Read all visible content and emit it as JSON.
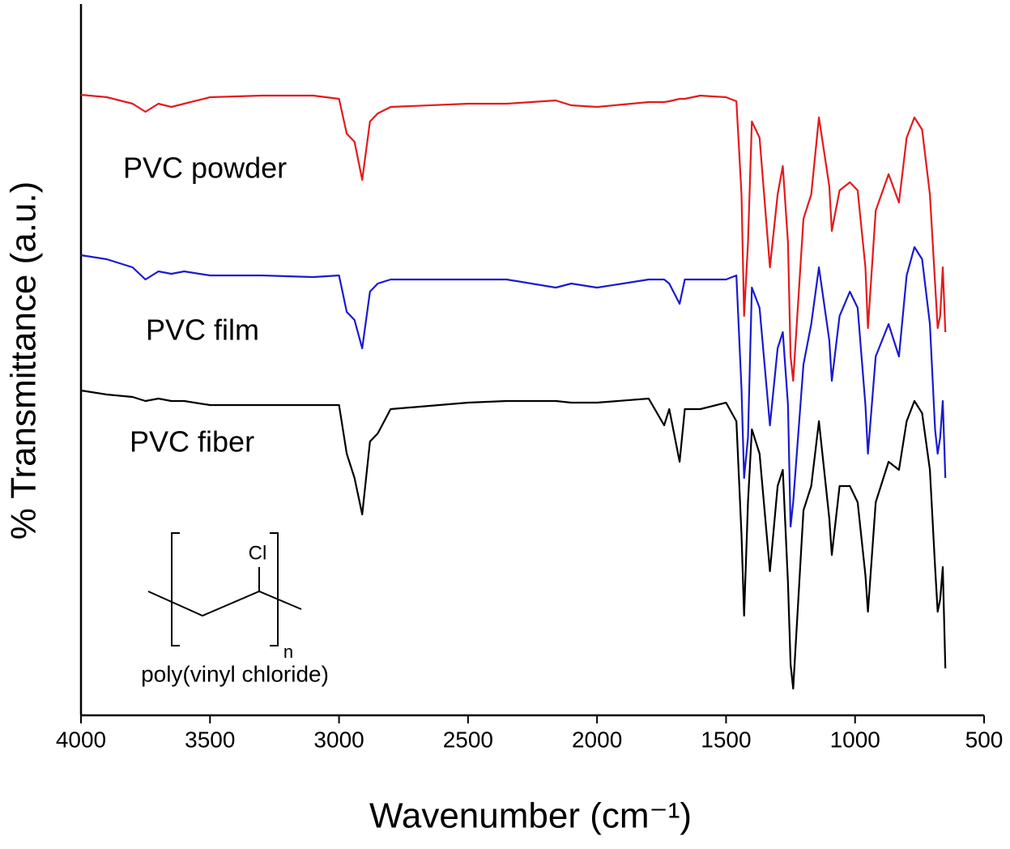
{
  "chart_data": {
    "type": "line",
    "x_label": "Wavenumber (cm⁻¹)",
    "y_label": "% Transmittance (a.u.)",
    "xlim": [
      4000,
      500
    ],
    "ylim": [
      0,
      87.8
    ],
    "xticks": [
      4000,
      3500,
      3000,
      2500,
      2000,
      1500,
      1000,
      500
    ],
    "x": [
      4000,
      3900,
      3800,
      3750,
      3700,
      3650,
      3600,
      3500,
      3300,
      3100,
      3000,
      2970,
      2940,
      2910,
      2880,
      2850,
      2800,
      2500,
      2350,
      2160,
      2100,
      2000,
      1800,
      1740,
      1720,
      1680,
      1660,
      1600,
      1500,
      1460,
      1440,
      1430,
      1415,
      1400,
      1370,
      1330,
      1300,
      1280,
      1260,
      1250,
      1240,
      1200,
      1170,
      1140,
      1100,
      1090,
      1060,
      1020,
      990,
      960,
      950,
      920,
      870,
      830,
      800,
      770,
      740,
      710,
      690,
      680,
      670,
      660,
      650
    ],
    "series": [
      {
        "name": "PVC powder",
        "color": "#e41a1c",
        "values": [
          76.6,
          76.3,
          75.5,
          74.5,
          75.5,
          75.1,
          75.5,
          76.3,
          76.5,
          76.5,
          76.1,
          71.8,
          70.8,
          66.1,
          73.3,
          74.3,
          75.1,
          75.5,
          75.5,
          75.9,
          75.3,
          75.1,
          75.7,
          75.7,
          75.8,
          76.1,
          76.1,
          76.5,
          76.3,
          75.8,
          64.3,
          49.3,
          58.3,
          73.3,
          71.3,
          55.3,
          64.3,
          67.8,
          58.3,
          44.3,
          41.3,
          61.3,
          64.3,
          73.8,
          65.3,
          59.8,
          64.8,
          65.8,
          64.8,
          55.3,
          47.8,
          62.3,
          66.8,
          63.3,
          71.3,
          73.8,
          72.3,
          64.3,
          53.3,
          47.8,
          49.3,
          55.3,
          47.3
        ]
      },
      {
        "name": "PVC film",
        "color": "#1a1ad0",
        "values": [
          56.8,
          56.3,
          55.3,
          53.8,
          54.8,
          54.5,
          54.8,
          54.3,
          54.3,
          54.1,
          54.3,
          49.8,
          48.8,
          45.3,
          52.3,
          53.3,
          53.8,
          53.8,
          53.8,
          52.8,
          53.3,
          52.8,
          53.8,
          53.8,
          53.3,
          50.8,
          53.8,
          53.8,
          53.8,
          54.3,
          40.3,
          29.3,
          34.3,
          52.8,
          50.3,
          35.8,
          45.3,
          47.3,
          38.3,
          23.3,
          26.3,
          43.3,
          48.3,
          55.3,
          46.3,
          41.3,
          49.3,
          52.3,
          50.3,
          38.3,
          32.3,
          44.3,
          48.3,
          44.3,
          54.3,
          57.8,
          56.3,
          48.3,
          35.3,
          32.3,
          34.3,
          38.8,
          29.3
        ]
      },
      {
        "name": "PVC fiber",
        "color": "#000000",
        "values": [
          40.1,
          39.6,
          39.3,
          38.8,
          39.1,
          38.8,
          38.8,
          38.3,
          38.3,
          38.3,
          38.3,
          32.3,
          29.3,
          24.8,
          33.8,
          34.8,
          37.8,
          38.6,
          38.8,
          38.8,
          38.6,
          38.6,
          39.1,
          35.8,
          37.8,
          31.3,
          37.8,
          37.8,
          38.6,
          36.3,
          22.3,
          12.3,
          26.3,
          35.3,
          32.3,
          17.8,
          28.3,
          30.3,
          16.3,
          6.3,
          3.3,
          25.3,
          28.3,
          36.3,
          24.3,
          19.8,
          28.3,
          28.3,
          26.3,
          17.3,
          12.8,
          26.3,
          31.3,
          30.3,
          36.3,
          38.8,
          37.3,
          30.3,
          18.3,
          12.8,
          14.3,
          18.3,
          5.8
        ]
      }
    ],
    "structure": {
      "substituent": "Cl",
      "subscript": "n",
      "label": "poly(vinyl chloride)"
    }
  }
}
